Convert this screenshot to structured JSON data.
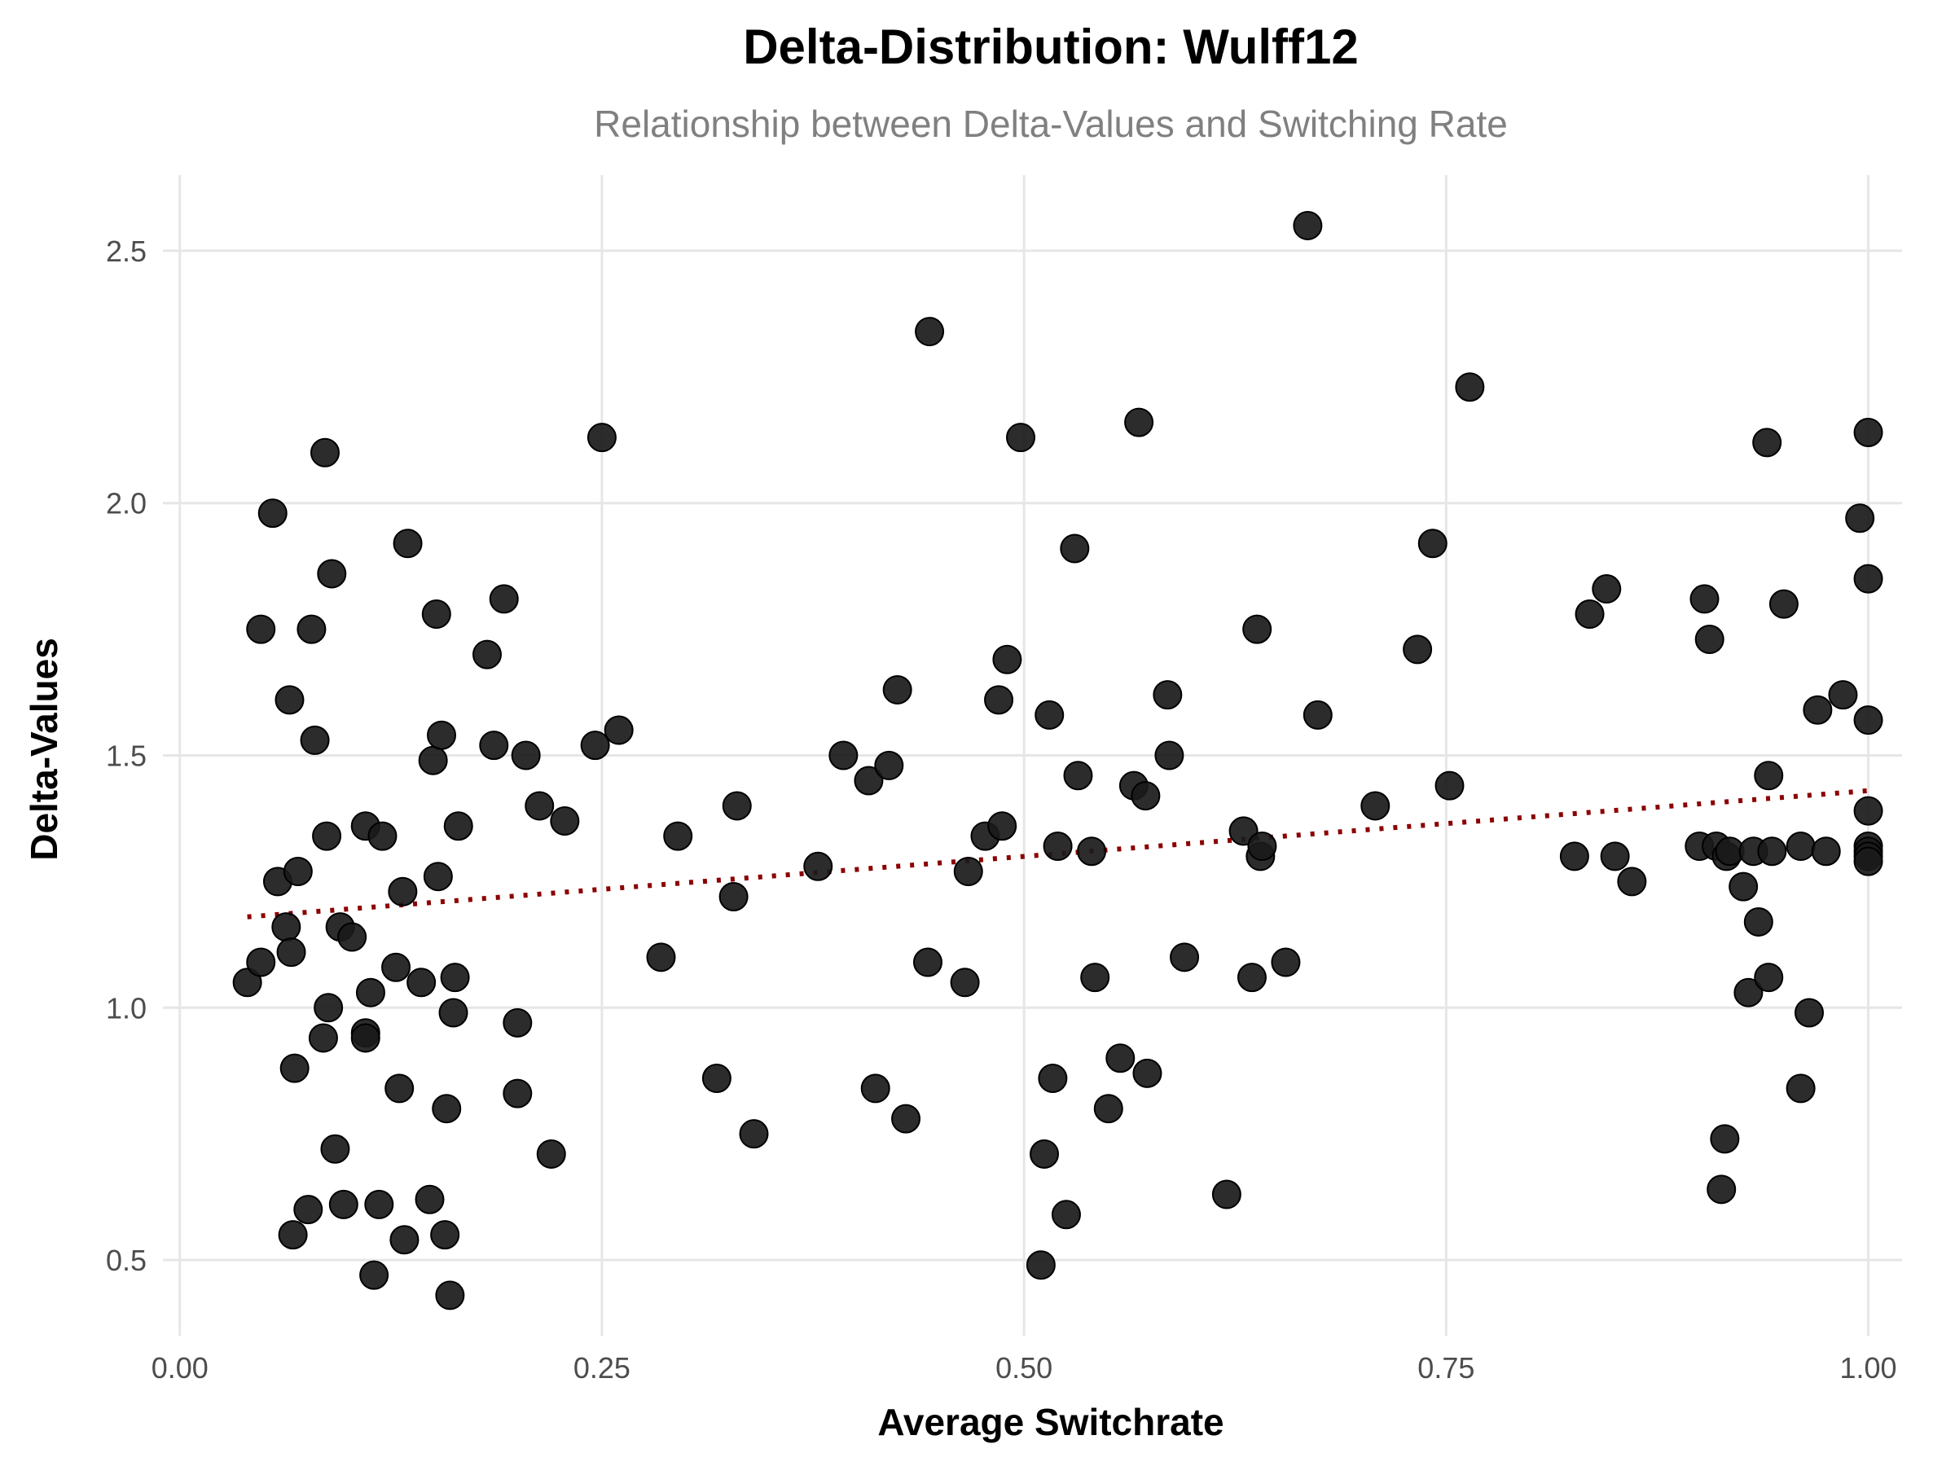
{
  "chart_data": {
    "type": "scatter",
    "title": "Delta-Distribution: Wulff12",
    "subtitle": "Relationship between Delta-Values and Switching Rate",
    "xlabel": "Average Switchrate",
    "ylabel": "Delta-Values",
    "xlim": [
      -0.01,
      1.02
    ],
    "ylim": [
      0.35,
      2.65
    ],
    "x_ticks": [
      0.0,
      0.25,
      0.5,
      0.75,
      1.0
    ],
    "x_tick_labels": [
      "0.00",
      "0.25",
      "0.50",
      "0.75",
      "1.00"
    ],
    "y_ticks": [
      0.5,
      1.0,
      1.5,
      2.0,
      2.5
    ],
    "y_tick_labels": [
      "0.5",
      "1.0",
      "1.5",
      "2.0",
      "2.5"
    ],
    "grid": true,
    "colors": {
      "points": "#1a1a1a",
      "trend": "#8b0000",
      "grid": "#e6e6e6"
    },
    "trend_line": {
      "x": [
        0.04,
        1.0
      ],
      "y": [
        1.18,
        1.43
      ],
      "style": "dotted"
    },
    "points": [
      {
        "x": 0.04,
        "y": 1.05
      },
      {
        "x": 0.048,
        "y": 1.09
      },
      {
        "x": 0.048,
        "y": 1.75
      },
      {
        "x": 0.055,
        "y": 1.98
      },
      {
        "x": 0.058,
        "y": 1.25
      },
      {
        "x": 0.063,
        "y": 1.16
      },
      {
        "x": 0.065,
        "y": 1.61
      },
      {
        "x": 0.066,
        "y": 1.11
      },
      {
        "x": 0.067,
        "y": 0.55
      },
      {
        "x": 0.068,
        "y": 0.88
      },
      {
        "x": 0.07,
        "y": 1.27
      },
      {
        "x": 0.076,
        "y": 0.6
      },
      {
        "x": 0.078,
        "y": 1.75
      },
      {
        "x": 0.08,
        "y": 1.53
      },
      {
        "x": 0.085,
        "y": 0.94
      },
      {
        "x": 0.086,
        "y": 2.1
      },
      {
        "x": 0.087,
        "y": 1.34
      },
      {
        "x": 0.088,
        "y": 1.0
      },
      {
        "x": 0.09,
        "y": 1.86
      },
      {
        "x": 0.092,
        "y": 0.72
      },
      {
        "x": 0.095,
        "y": 1.16
      },
      {
        "x": 0.097,
        "y": 0.61
      },
      {
        "x": 0.102,
        "y": 1.14
      },
      {
        "x": 0.11,
        "y": 0.95
      },
      {
        "x": 0.11,
        "y": 0.94
      },
      {
        "x": 0.11,
        "y": 1.36
      },
      {
        "x": 0.113,
        "y": 1.03
      },
      {
        "x": 0.115,
        "y": 0.47
      },
      {
        "x": 0.118,
        "y": 0.61
      },
      {
        "x": 0.12,
        "y": 1.34
      },
      {
        "x": 0.128,
        "y": 1.08
      },
      {
        "x": 0.13,
        "y": 0.84
      },
      {
        "x": 0.132,
        "y": 1.23
      },
      {
        "x": 0.133,
        "y": 0.54
      },
      {
        "x": 0.135,
        "y": 1.92
      },
      {
        "x": 0.143,
        "y": 1.05
      },
      {
        "x": 0.148,
        "y": 0.62
      },
      {
        "x": 0.15,
        "y": 1.49
      },
      {
        "x": 0.152,
        "y": 1.78
      },
      {
        "x": 0.153,
        "y": 1.26
      },
      {
        "x": 0.155,
        "y": 1.54
      },
      {
        "x": 0.157,
        "y": 0.55
      },
      {
        "x": 0.158,
        "y": 0.8
      },
      {
        "x": 0.16,
        "y": 0.43
      },
      {
        "x": 0.162,
        "y": 0.99
      },
      {
        "x": 0.163,
        "y": 1.06
      },
      {
        "x": 0.165,
        "y": 1.36
      },
      {
        "x": 0.182,
        "y": 1.7
      },
      {
        "x": 0.186,
        "y": 1.52
      },
      {
        "x": 0.192,
        "y": 1.81
      },
      {
        "x": 0.2,
        "y": 0.97
      },
      {
        "x": 0.2,
        "y": 0.83
      },
      {
        "x": 0.205,
        "y": 1.5
      },
      {
        "x": 0.213,
        "y": 1.4
      },
      {
        "x": 0.22,
        "y": 0.71
      },
      {
        "x": 0.228,
        "y": 1.37
      },
      {
        "x": 0.246,
        "y": 1.52
      },
      {
        "x": 0.25,
        "y": 2.13
      },
      {
        "x": 0.26,
        "y": 1.55
      },
      {
        "x": 0.285,
        "y": 1.1
      },
      {
        "x": 0.295,
        "y": 1.34
      },
      {
        "x": 0.318,
        "y": 0.86
      },
      {
        "x": 0.328,
        "y": 1.22
      },
      {
        "x": 0.33,
        "y": 1.4
      },
      {
        "x": 0.34,
        "y": 0.75
      },
      {
        "x": 0.378,
        "y": 1.28
      },
      {
        "x": 0.393,
        "y": 1.5
      },
      {
        "x": 0.408,
        "y": 1.45
      },
      {
        "x": 0.412,
        "y": 0.84
      },
      {
        "x": 0.42,
        "y": 1.48
      },
      {
        "x": 0.425,
        "y": 1.63
      },
      {
        "x": 0.43,
        "y": 0.78
      },
      {
        "x": 0.443,
        "y": 1.09
      },
      {
        "x": 0.444,
        "y": 2.34
      },
      {
        "x": 0.465,
        "y": 1.05
      },
      {
        "x": 0.467,
        "y": 1.27
      },
      {
        "x": 0.477,
        "y": 1.34
      },
      {
        "x": 0.485,
        "y": 1.61
      },
      {
        "x": 0.487,
        "y": 1.36
      },
      {
        "x": 0.49,
        "y": 1.69
      },
      {
        "x": 0.498,
        "y": 2.13
      },
      {
        "x": 0.51,
        "y": 0.49
      },
      {
        "x": 0.512,
        "y": 0.71
      },
      {
        "x": 0.515,
        "y": 1.58
      },
      {
        "x": 0.517,
        "y": 0.86
      },
      {
        "x": 0.52,
        "y": 1.32
      },
      {
        "x": 0.525,
        "y": 0.59
      },
      {
        "x": 0.53,
        "y": 1.91
      },
      {
        "x": 0.532,
        "y": 1.46
      },
      {
        "x": 0.54,
        "y": 1.31
      },
      {
        "x": 0.542,
        "y": 1.06
      },
      {
        "x": 0.55,
        "y": 0.8
      },
      {
        "x": 0.557,
        "y": 0.9
      },
      {
        "x": 0.565,
        "y": 1.44
      },
      {
        "x": 0.568,
        "y": 2.16
      },
      {
        "x": 0.572,
        "y": 1.42
      },
      {
        "x": 0.573,
        "y": 0.87
      },
      {
        "x": 0.585,
        "y": 1.62
      },
      {
        "x": 0.586,
        "y": 1.5
      },
      {
        "x": 0.595,
        "y": 1.1
      },
      {
        "x": 0.62,
        "y": 0.63
      },
      {
        "x": 0.63,
        "y": 1.35
      },
      {
        "x": 0.635,
        "y": 1.06
      },
      {
        "x": 0.638,
        "y": 1.75
      },
      {
        "x": 0.64,
        "y": 1.3
      },
      {
        "x": 0.641,
        "y": 1.32
      },
      {
        "x": 0.655,
        "y": 1.09
      },
      {
        "x": 0.668,
        "y": 2.55
      },
      {
        "x": 0.674,
        "y": 1.58
      },
      {
        "x": 0.708,
        "y": 1.4
      },
      {
        "x": 0.733,
        "y": 1.71
      },
      {
        "x": 0.742,
        "y": 1.92
      },
      {
        "x": 0.752,
        "y": 1.44
      },
      {
        "x": 0.764,
        "y": 2.23
      },
      {
        "x": 0.826,
        "y": 1.3
      },
      {
        "x": 0.835,
        "y": 1.78
      },
      {
        "x": 0.845,
        "y": 1.83
      },
      {
        "x": 0.85,
        "y": 1.3
      },
      {
        "x": 0.86,
        "y": 1.25
      },
      {
        "x": 0.9,
        "y": 1.32
      },
      {
        "x": 0.903,
        "y": 1.81
      },
      {
        "x": 0.906,
        "y": 1.73
      },
      {
        "x": 0.91,
        "y": 1.32
      },
      {
        "x": 0.913,
        "y": 0.64
      },
      {
        "x": 0.915,
        "y": 0.74
      },
      {
        "x": 0.916,
        "y": 1.3
      },
      {
        "x": 0.918,
        "y": 1.31
      },
      {
        "x": 0.926,
        "y": 1.24
      },
      {
        "x": 0.929,
        "y": 1.03
      },
      {
        "x": 0.932,
        "y": 1.31
      },
      {
        "x": 0.935,
        "y": 1.17
      },
      {
        "x": 0.94,
        "y": 2.12
      },
      {
        "x": 0.941,
        "y": 1.46
      },
      {
        "x": 0.941,
        "y": 1.06
      },
      {
        "x": 0.943,
        "y": 1.31
      },
      {
        "x": 0.95,
        "y": 1.8
      },
      {
        "x": 0.96,
        "y": 1.32
      },
      {
        "x": 0.96,
        "y": 0.84
      },
      {
        "x": 0.965,
        "y": 0.99
      },
      {
        "x": 0.97,
        "y": 1.59
      },
      {
        "x": 0.975,
        "y": 1.31
      },
      {
        "x": 0.985,
        "y": 1.62
      },
      {
        "x": 0.995,
        "y": 1.97
      },
      {
        "x": 1.0,
        "y": 2.14
      },
      {
        "x": 1.0,
        "y": 1.85
      },
      {
        "x": 1.0,
        "y": 1.57
      },
      {
        "x": 1.0,
        "y": 1.39
      },
      {
        "x": 1.0,
        "y": 1.32
      },
      {
        "x": 1.0,
        "y": 1.31
      },
      {
        "x": 1.0,
        "y": 1.3
      },
      {
        "x": 1.0,
        "y": 1.29
      }
    ]
  }
}
